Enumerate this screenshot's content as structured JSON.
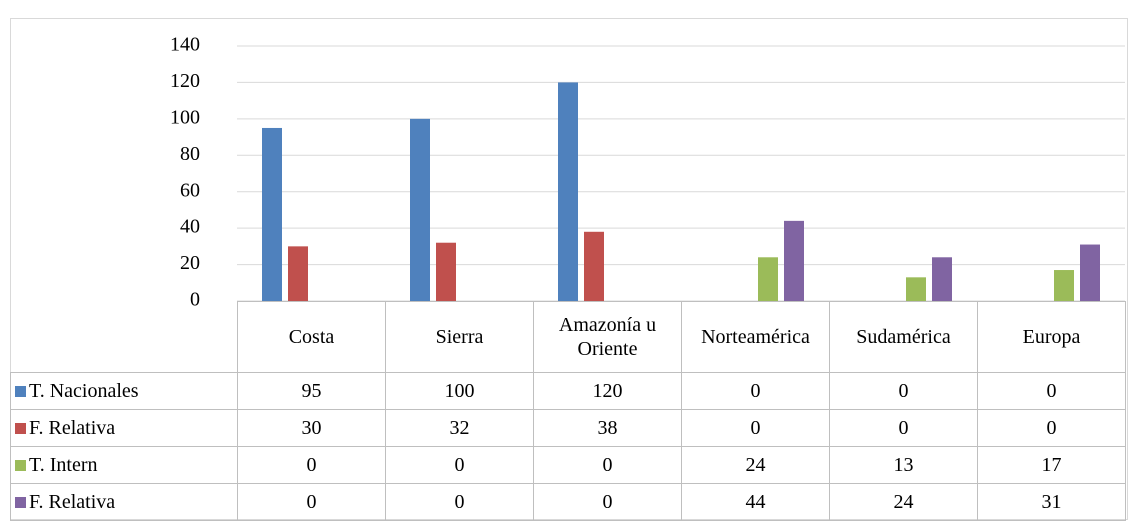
{
  "chart_data": {
    "type": "bar",
    "categories": [
      "Costa",
      "Sierra",
      "Amazonía u Oriente",
      "Norteamérica",
      "Sudamérica",
      "Europa"
    ],
    "series": [
      {
        "name": "T. Nacionales",
        "color": "#4f81bd",
        "values": [
          95,
          100,
          120,
          0,
          0,
          0
        ]
      },
      {
        "name": "F. Relativa",
        "color": "#c0504d",
        "values": [
          30,
          32,
          38,
          0,
          0,
          0
        ]
      },
      {
        "name": "T. Intern",
        "color": "#9bbb59",
        "values": [
          0,
          0,
          0,
          24,
          13,
          17
        ]
      },
      {
        "name": "F. Relativa",
        "color": "#8064a2",
        "values": [
          0,
          0,
          0,
          44,
          24,
          31
        ]
      }
    ],
    "ylim": [
      0,
      140
    ],
    "yticks": [
      0,
      20,
      40,
      60,
      80,
      100,
      120,
      140
    ],
    "grid": true
  }
}
